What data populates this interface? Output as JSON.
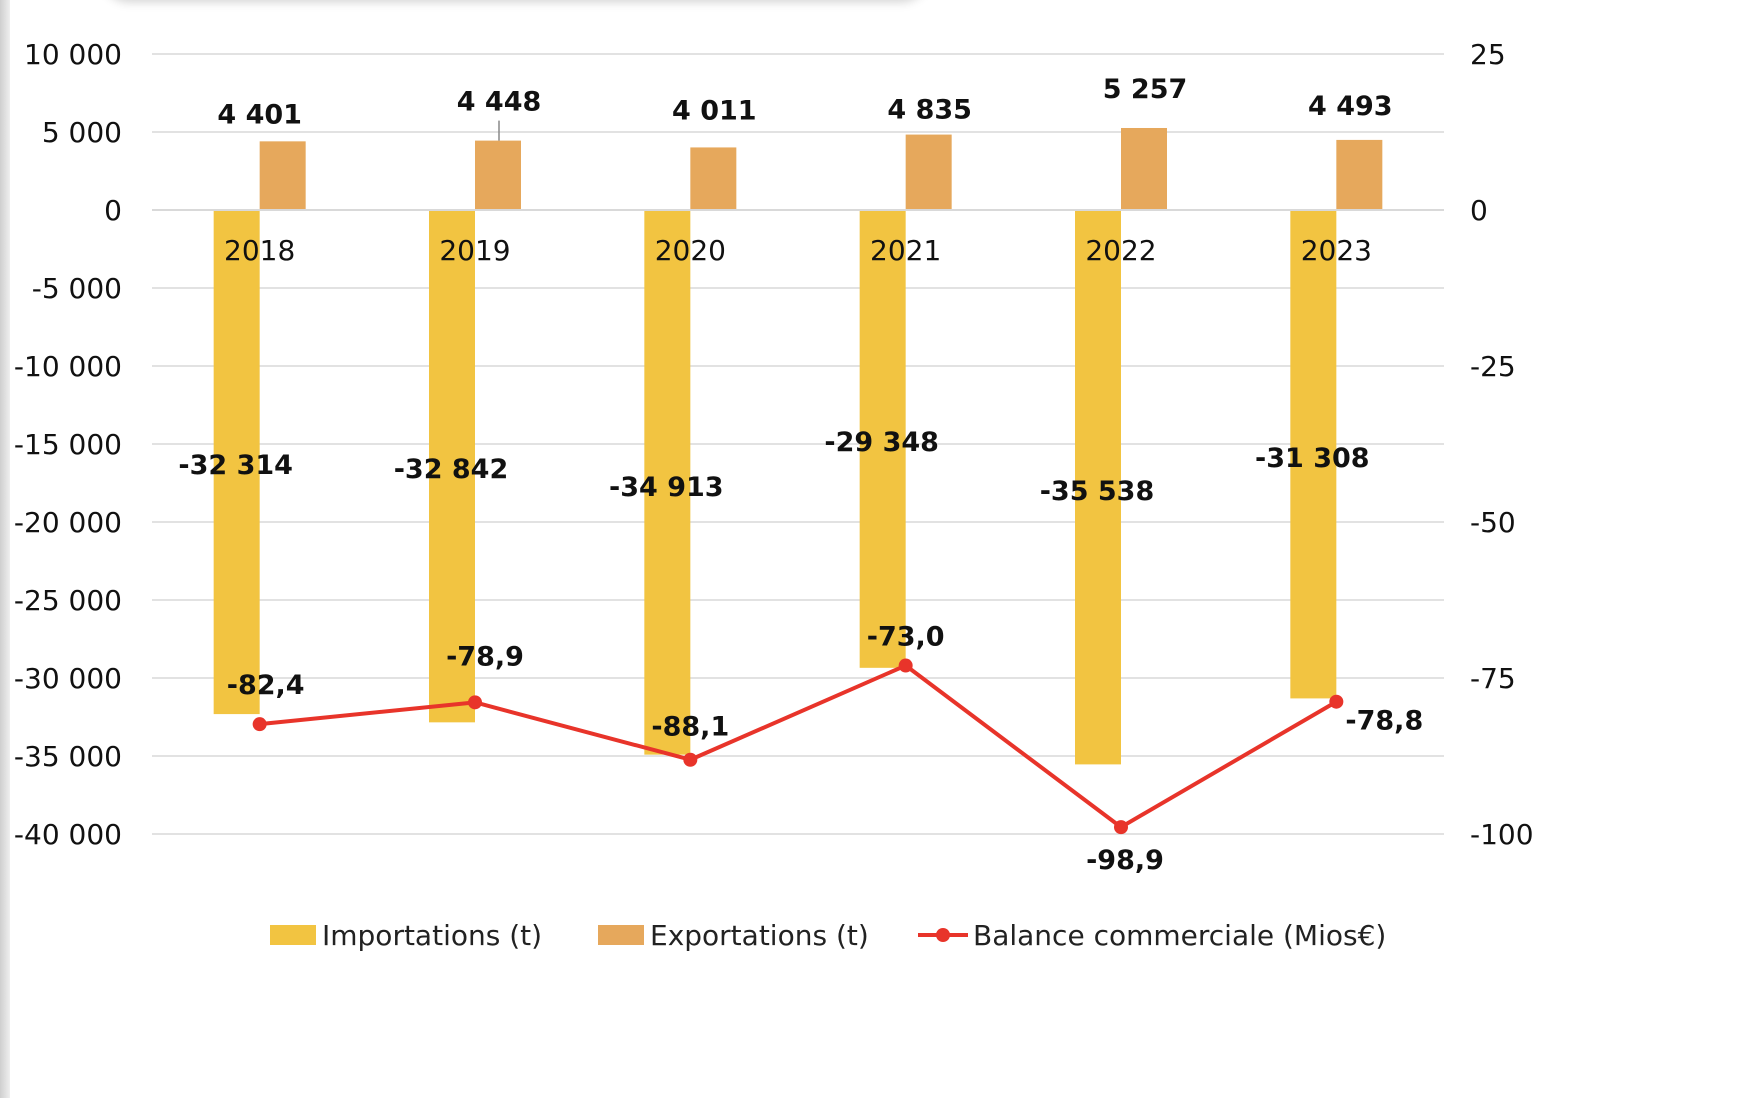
{
  "chart_data": {
    "type": "bar",
    "categories": [
      "2018",
      "2019",
      "2020",
      "2021",
      "2022",
      "2023"
    ],
    "series": [
      {
        "name": "Importations (t)",
        "type": "bar",
        "axis": "left",
        "color": "#F2C441",
        "values": [
          -32314,
          -32842,
          -34913,
          -29348,
          -35538,
          -31308
        ],
        "labels": [
          "-32 314",
          "-32 842",
          "-34 913",
          "-29 348",
          "-35 538",
          "-31 308"
        ]
      },
      {
        "name": "Exportations (t)",
        "type": "bar",
        "axis": "left",
        "color": "#E6A85C",
        "values": [
          4401,
          4448,
          4011,
          4835,
          5257,
          4493
        ],
        "labels": [
          "4 401",
          "4 448",
          "4 011",
          "4 835",
          "5 257",
          "4 493"
        ]
      },
      {
        "name": "Balance commerciale (Mios€)",
        "type": "line",
        "axis": "right",
        "color": "#E8342A",
        "values": [
          -82.4,
          -78.9,
          -88.1,
          -73.0,
          -98.9,
          -78.8
        ],
        "labels": [
          "-82,4",
          "-78,9",
          "-88,1",
          "-73,0",
          "-98,9",
          "-78,8"
        ]
      }
    ],
    "y_left": {
      "min": -40000,
      "max": 10000,
      "ticks": [
        10000,
        5000,
        0,
        -5000,
        -10000,
        -15000,
        -20000,
        -25000,
        -30000,
        -35000,
        -40000
      ],
      "tick_labels": [
        "10 000",
        "5 000",
        "0",
        "-5 000",
        "-10 000",
        "-15 000",
        "-20 000",
        "-25 000",
        "-30 000",
        "-35 000",
        "-40 000"
      ]
    },
    "y_right": {
      "min": -100,
      "max": 25,
      "ticks": [
        25,
        0,
        -25,
        -50,
        -75,
        -100
      ],
      "tick_labels": [
        "25",
        "0",
        "-25",
        "-50",
        "-75",
        "-100"
      ]
    },
    "grid": true,
    "legend_position": "bottom"
  }
}
